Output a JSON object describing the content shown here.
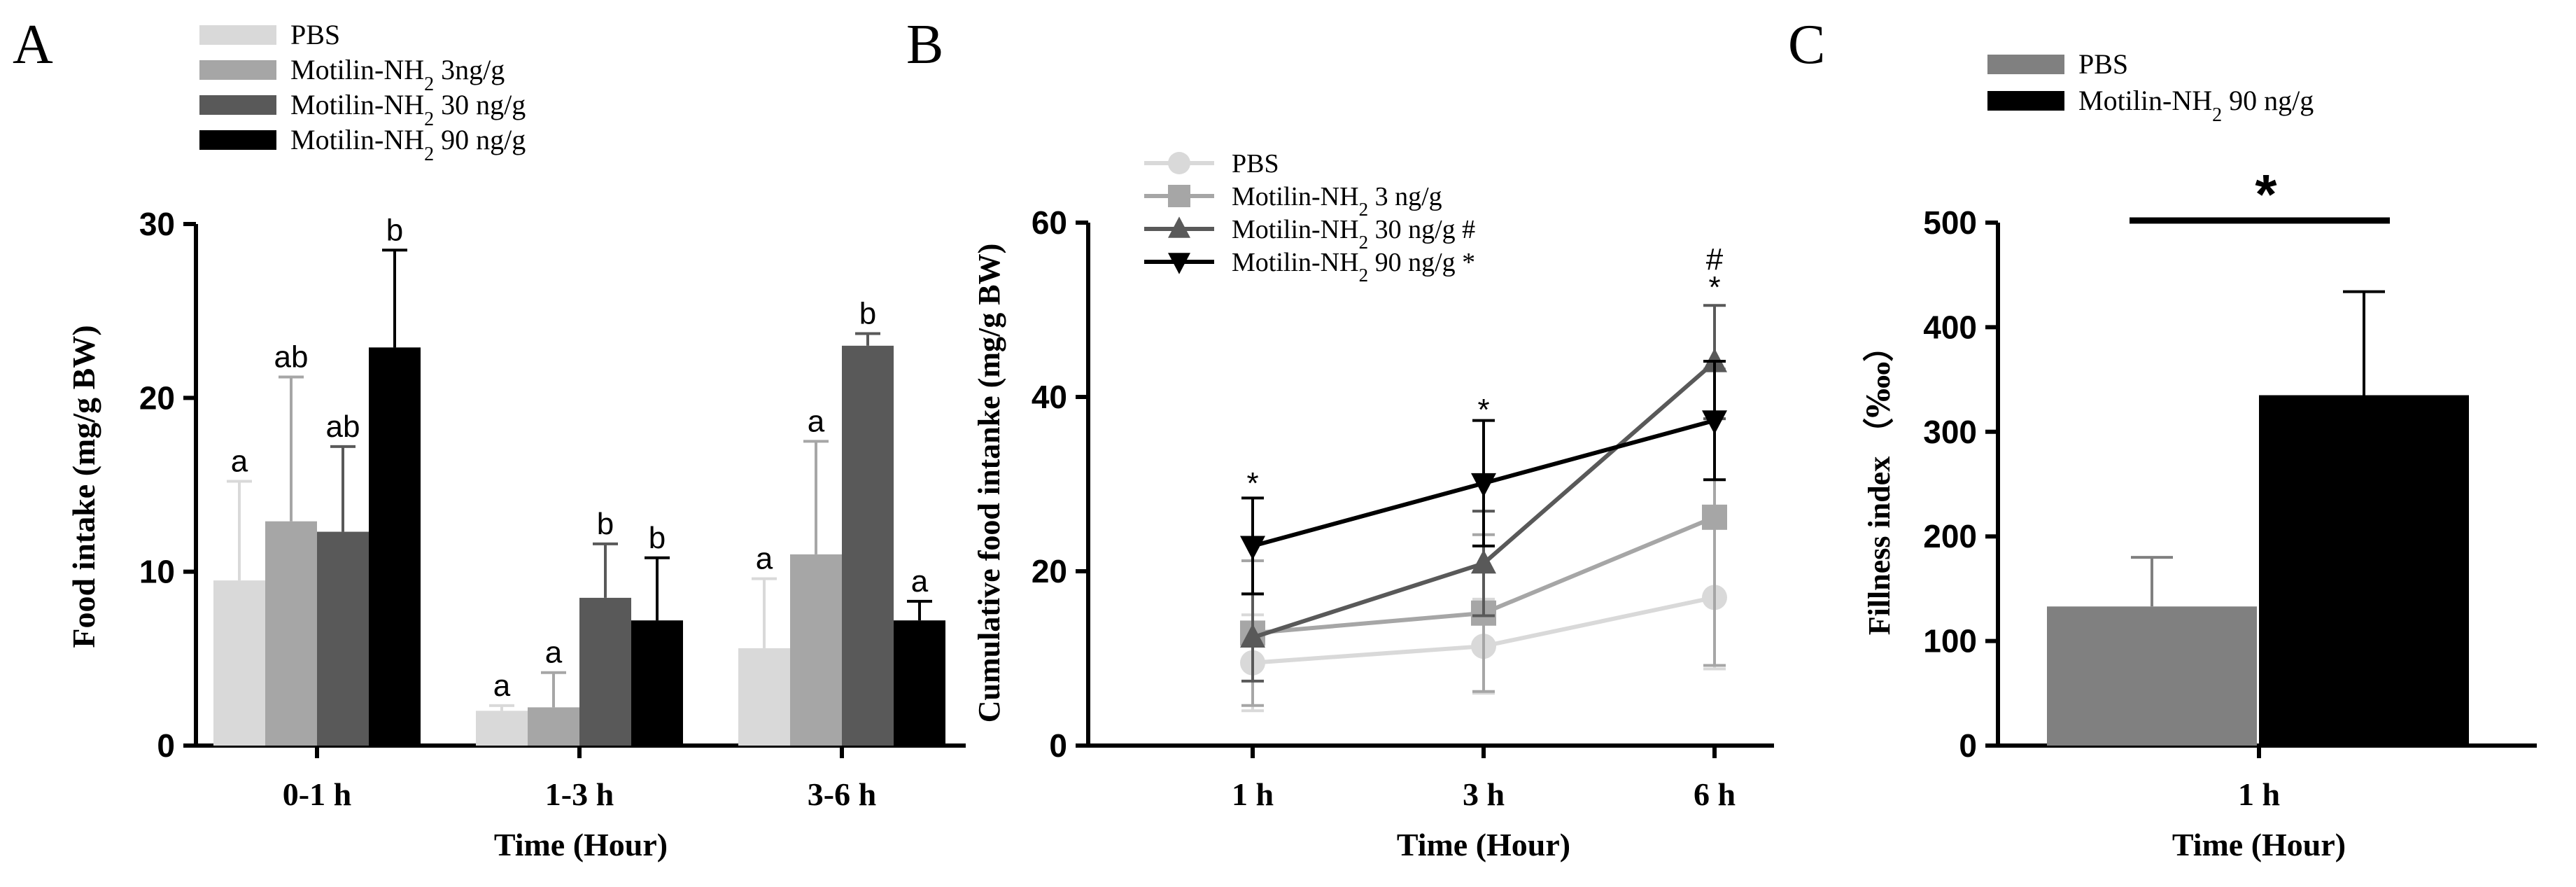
{
  "colors": {
    "pbs": "#d9d9d9",
    "m3": "#a6a6a6",
    "m30": "#595959",
    "m90": "#000000",
    "c_pbs": "#808080",
    "c_m90": "#000000"
  },
  "chart_data": [
    {
      "panel": "A",
      "type": "bar",
      "xlabel": "Time (Hour)",
      "ylabel": "Food intake (mg/g BW)",
      "ylim": [
        0,
        30
      ],
      "yticks": [
        "0",
        "10",
        "20",
        "30"
      ],
      "categories": [
        "0-1 h",
        "1-3 h",
        "3-6 h"
      ],
      "legend": {
        "position": "top",
        "entries": [
          "PBS",
          "Motilin-NH",
          "Motilin-NH",
          "Motilin-NH"
        ]
      },
      "legend_suffix": [
        "",
        " 3ng/g",
        " 30 ng/g",
        " 90 ng/g"
      ],
      "subscript": "2",
      "series": [
        {
          "name": "PBS",
          "values": [
            9.5,
            2.0,
            5.6
          ],
          "errors": [
            5.7,
            0.3,
            4.0
          ],
          "letters": [
            "a",
            "a",
            "a"
          ]
        },
        {
          "name": "Motilin-NH2 3ng/g",
          "values": [
            12.9,
            2.2,
            11.0
          ],
          "errors": [
            8.3,
            2.0,
            6.5
          ],
          "letters": [
            "ab",
            "a",
            "a"
          ]
        },
        {
          "name": "Motilin-NH2 30 ng/g",
          "values": [
            12.3,
            8.5,
            23.0
          ],
          "errors": [
            4.9,
            3.1,
            0.7
          ],
          "letters": [
            "ab",
            "b",
            "b"
          ]
        },
        {
          "name": "Motilin-NH2 90 ng/g",
          "values": [
            22.9,
            7.2,
            7.2
          ],
          "errors": [
            5.6,
            3.6,
            1.1
          ],
          "letters": [
            "b",
            "b",
            "a"
          ]
        }
      ]
    },
    {
      "panel": "B",
      "type": "line",
      "xlabel": "Time (Hour)",
      "ylabel": "Cumulative food intanke (mg/g BW)",
      "ylim": [
        0,
        60
      ],
      "yticks": [
        "0",
        "20",
        "40",
        "60"
      ],
      "categories": [
        "1 h",
        "3 h",
        "6 h"
      ],
      "legend": {
        "position": "top-left",
        "entries": [
          "PBS",
          "Motilin-NH",
          "Motilin-NH",
          "Motilin-NH"
        ]
      },
      "legend_suffix": [
        "",
        " 3 ng/g",
        " 30 ng/g #",
        " 90 ng/g *"
      ],
      "subscript": "2",
      "series": [
        {
          "name": "PBS",
          "values": [
            9.5,
            11.4,
            17.0
          ],
          "errors": [
            5.5,
            5.4,
            8.2
          ]
        },
        {
          "name": "Motilin-NH2 3 ng/g",
          "values": [
            12.9,
            15.2,
            26.2
          ],
          "errors": [
            8.3,
            9.0,
            17.0
          ]
        },
        {
          "name": "Motilin-NH2 30 ng/g #",
          "values": [
            12.4,
            20.9,
            44.0
          ],
          "errors": [
            5.0,
            6.0,
            6.5
          ]
        },
        {
          "name": "Motilin-NH2 90 ng/g *",
          "values": [
            22.9,
            30.1,
            37.3
          ],
          "errors": [
            5.5,
            7.2,
            6.8
          ]
        }
      ],
      "annotations": [
        {
          "x": "1 h",
          "text": "*"
        },
        {
          "x": "3 h",
          "text": "*"
        },
        {
          "x": "6 h",
          "text": "*"
        },
        {
          "x": "6 h",
          "text": "#"
        }
      ]
    },
    {
      "panel": "C",
      "type": "bar",
      "xlabel": "Time (Hour)",
      "ylabel": "Fillness index （‱）",
      "ylim": [
        0,
        500
      ],
      "yticks": [
        "0",
        "100",
        "200",
        "300",
        "400",
        "500"
      ],
      "categories": [
        "1 h"
      ],
      "legend": {
        "position": "top",
        "entries": [
          "PBS",
          "Motilin-NH"
        ]
      },
      "legend_suffix": [
        "",
        " 90 ng/g"
      ],
      "subscript": "2",
      "series": [
        {
          "name": "PBS",
          "values": [
            133
          ],
          "errors": [
            47
          ]
        },
        {
          "name": "Motilin-NH2 90 ng/g",
          "values": [
            335
          ],
          "errors": [
            99
          ]
        }
      ],
      "significance": "*"
    }
  ]
}
